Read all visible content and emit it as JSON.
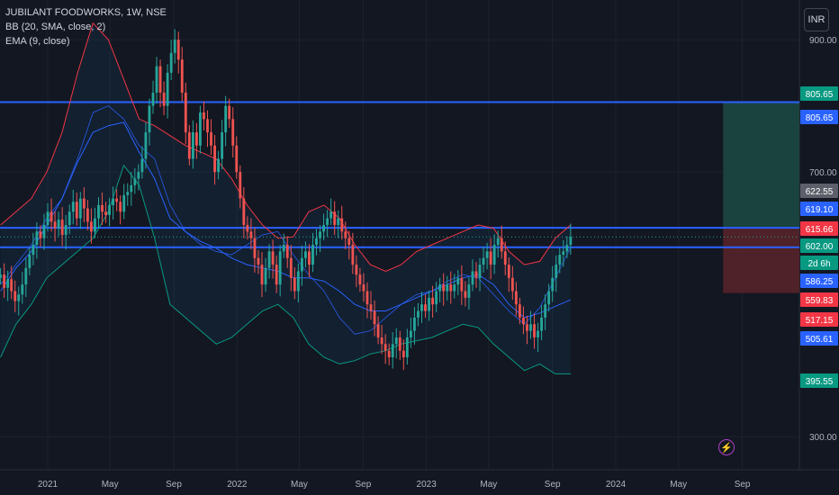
{
  "header": {
    "symbol_line": "JUBILANT FOODWORKS, 1W, NSE",
    "bb_line": "BB (20, SMA, close, 2)",
    "ema_line": "EMA (9, close)",
    "currency_button": "INR"
  },
  "colors": {
    "background": "#131722",
    "grid": "#1e222d",
    "axis_text": "#b2b5be",
    "bull": "#26a69a",
    "bear": "#ef5350",
    "bb_upper": "#f23645",
    "bb_lower": "#089981",
    "bb_basis": "#2962ff",
    "ema": "#2962ff",
    "hline": "#2962ff",
    "target_zone": "#1c4a43",
    "stop_zone": "#5a2329"
  },
  "chart_data": {
    "type": "candlestick",
    "title": "JUBILANT FOODWORKS, 1W, NSE",
    "x_tick_labels": [
      "2021",
      "May",
      "Sep",
      "2022",
      "May",
      "Sep",
      "2023",
      "May",
      "Sep",
      "2024",
      "May",
      "Sep"
    ],
    "x_tick_dates": [
      "2021-01-01",
      "2021-05-01",
      "2021-09-01",
      "2022-01-01",
      "2022-05-01",
      "2022-09-01",
      "2023-01-01",
      "2023-05-01",
      "2023-09-01",
      "2024-01-01",
      "2024-05-01",
      "2024-09-01"
    ],
    "xlim": [
      "2020-10-01",
      "2024-12-20"
    ],
    "y_tick_labels": [
      "900.00",
      "700.00",
      "300.00"
    ],
    "ylim": [
      250,
      960
    ],
    "grid": true,
    "close_series": {
      "start_date": "2020-10-02",
      "interval": "1 week",
      "values": [
        545,
        525,
        538,
        520,
        505,
        515,
        530,
        555,
        575,
        590,
        610,
        600,
        620,
        640,
        625,
        615,
        628,
        605,
        620,
        640,
        655,
        630,
        660,
        645,
        625,
        610,
        630,
        650,
        640,
        635,
        650,
        660,
        655,
        640,
        665,
        670,
        680,
        690,
        700,
        720,
        760,
        800,
        820,
        860,
        820,
        800,
        850,
        880,
        900,
        870,
        820,
        760,
        720,
        760,
        740,
        790,
        780,
        760,
        740,
        700,
        720,
        760,
        800,
        780,
        740,
        700,
        660,
        620,
        610,
        600,
        570,
        560,
        530,
        555,
        580,
        560,
        530,
        580,
        590,
        570,
        540,
        520,
        550,
        570,
        580,
        560,
        590,
        600,
        610,
        620,
        630,
        640,
        620,
        630,
        610,
        600,
        590,
        560,
        545,
        530,
        520,
        500,
        490,
        470,
        450,
        440,
        430,
        420,
        440,
        450,
        430,
        420,
        450,
        460,
        480,
        490,
        500,
        490,
        510,
        500,
        520,
        530,
        520,
        530,
        520,
        530,
        540,
        520,
        510,
        530,
        550,
        540,
        560,
        570,
        580,
        560,
        590,
        600,
        580,
        560,
        540,
        520,
        500,
        480,
        470,
        460,
        470,
        450,
        460,
        480,
        500,
        520,
        540,
        560,
        575,
        580,
        590,
        602
      ]
    },
    "bollinger_upper": {
      "name": "BB upper",
      "values": [
        620,
        640,
        660,
        700,
        760,
        850,
        925,
        900,
        840,
        780,
        770,
        755,
        740,
        730,
        720,
        690,
        650,
        620,
        600,
        602,
        640,
        650,
        630,
        590,
        560,
        550,
        560,
        580,
        590,
        600,
        610,
        620,
        615,
        580,
        560,
        565,
        600,
        620
      ]
    },
    "bollinger_lower": {
      "name": "BB lower",
      "values": [
        420,
        470,
        500,
        540,
        560,
        580,
        600,
        640,
        710,
        680,
        600,
        500,
        480,
        460,
        440,
        450,
        470,
        490,
        500,
        480,
        440,
        420,
        410,
        415,
        425,
        430,
        440,
        445,
        450,
        460,
        470,
        465,
        440,
        420,
        400,
        410,
        395,
        395
      ]
    },
    "bollinger_basis": {
      "name": "BB basis",
      "values": [
        520,
        555,
        580,
        620,
        660,
        715,
        760,
        770,
        775,
        730,
        690,
        630,
        610,
        595,
        585,
        570,
        560,
        555,
        550,
        540,
        540,
        535,
        520,
        500,
        490,
        490,
        500,
        510,
        520,
        530,
        540,
        545,
        530,
        500,
        480,
        487,
        497,
        507
      ]
    },
    "ema_9": {
      "name": "EMA (9, close)",
      "values": [
        530,
        560,
        590,
        630,
        660,
        720,
        790,
        800,
        780,
        740,
        720,
        650,
        610,
        590,
        580,
        575,
        590,
        605,
        610,
        575,
        545,
        520,
        480,
        455,
        460,
        480,
        500,
        515,
        520,
        535,
        545,
        540,
        515,
        490,
        470,
        495,
        540,
        586
      ]
    },
    "horizontal_lines": [
      805.65,
      615.66,
      586.25
    ],
    "price_labels": [
      {
        "text": "805.65",
        "color": "#089981"
      },
      {
        "text": "805.65",
        "color": "#2962ff"
      },
      {
        "text": "622.55",
        "color": "#5d606b"
      },
      {
        "text": "619.10",
        "color": "#2962ff"
      },
      {
        "text": "615.66",
        "color": "#f23645"
      },
      {
        "text": "602.00",
        "color": "#089981"
      },
      {
        "text": "2d 6h",
        "color": "#089981"
      },
      {
        "text": "586.25",
        "color": "#2962ff"
      },
      {
        "text": "559.83",
        "color": "#f23645"
      },
      {
        "text": "517.15",
        "color": "#f23645"
      },
      {
        "text": "505.61",
        "color": "#2962ff"
      },
      {
        "text": "395.55",
        "color": "#089981"
      }
    ],
    "position_tool": {
      "entry": 615.66,
      "target": 805.65,
      "stop": 517.15,
      "start_date": "2024-07-26",
      "end_date": "2024-12-20"
    }
  }
}
